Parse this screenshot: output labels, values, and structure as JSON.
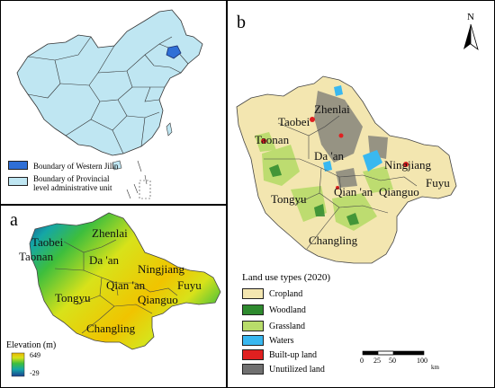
{
  "panel_a": {
    "letter": "a",
    "labels": {
      "taobei": "Taobei",
      "taonan": "Taonan",
      "zhenlai": "Zhenlai",
      "daan": "Da 'an",
      "ningjiang": "Ningjiang",
      "qianan": "Qian 'an",
      "qianguo": "Qianguo",
      "fuyu": "Fuyu",
      "tongyu": "Tongyu",
      "changling": "Changling"
    },
    "elevation": {
      "title": "Elevation (m)",
      "max": "649",
      "min": "-29"
    },
    "colors": {
      "high": "#1b3f8f",
      "mid1": "#14a6a6",
      "mid2": "#3dbe3d",
      "mid3": "#d8e21a",
      "low": "#e8b400"
    }
  },
  "panel_b": {
    "letter": "b",
    "north": "N",
    "labels": {
      "zhenlai": "Zhenlai",
      "taobei": "Taobei",
      "taonan": "Taonan",
      "daan": "Da 'an",
      "ningjiang": "Ningjiang",
      "fuyu": "Fuyu",
      "tongyu": "Tongyu",
      "qianan": "Qian 'an",
      "qianguo": "Qianguo",
      "changling": "Changling"
    },
    "legend_title": "Land use types (2020)",
    "legend_items": [
      {
        "label": "Cropland",
        "color": "#f3e6b0"
      },
      {
        "label": "Woodland",
        "color": "#2e8a2e"
      },
      {
        "label": "Grassland",
        "color": "#b8dc6a"
      },
      {
        "label": "Waters",
        "color": "#39b8f0"
      },
      {
        "label": "Built-up land",
        "color": "#e02020"
      },
      {
        "label": "Unutilized land",
        "color": "#707070"
      }
    ],
    "scale": {
      "ticks": [
        "0",
        "25",
        "50",
        "100"
      ],
      "unit": "km"
    }
  },
  "inset": {
    "legend": [
      {
        "label": "Boundary of Western Jilin",
        "color": "#2f6fd6"
      },
      {
        "label": "Boundary of Provincial level administrative unit",
        "color": "#bfe6f2"
      }
    ],
    "country_color": "#bfe6f2",
    "highlight_color": "#2f6fd6"
  }
}
